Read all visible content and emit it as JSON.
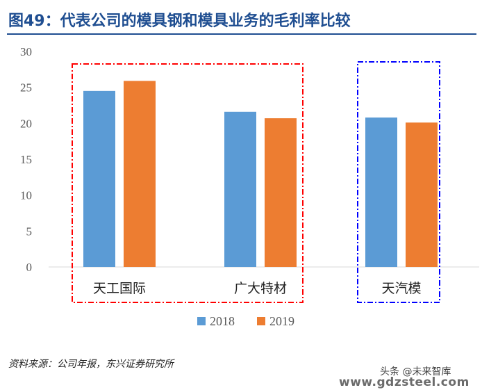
{
  "title": "图49：代表公司的模具钢和模具业务的毛利率比较",
  "source": "资料来源：公司年报，东兴证券研究所",
  "watermark": {
    "line1": "头条 @未来智库",
    "line2": "www.gdzsteel.com"
  },
  "colors": {
    "title": "#1f4e91",
    "series_2018": "#5b9bd5",
    "series_2019": "#ed7d31",
    "group_box_red": "#ff0000",
    "group_box_blue": "#0000ff"
  },
  "chart_data": {
    "type": "bar",
    "categories": [
      "天工国际",
      "广大特材",
      "天汽模"
    ],
    "series": [
      {
        "name": "2018",
        "values": [
          24.5,
          21.6,
          20.8
        ]
      },
      {
        "name": "2019",
        "values": [
          25.9,
          20.7,
          20.1
        ]
      }
    ],
    "ylim": [
      0,
      30
    ],
    "yticks": [
      "0",
      "5",
      "10",
      "15",
      "20",
      "25",
      "30"
    ],
    "grid": false,
    "legend": "bottom-center",
    "annotations": [
      {
        "type": "dashed-box",
        "color": "red",
        "covers": [
          "天工国际",
          "广大特材"
        ]
      },
      {
        "type": "dashed-box",
        "color": "blue",
        "covers": [
          "天汽模"
        ]
      }
    ]
  }
}
